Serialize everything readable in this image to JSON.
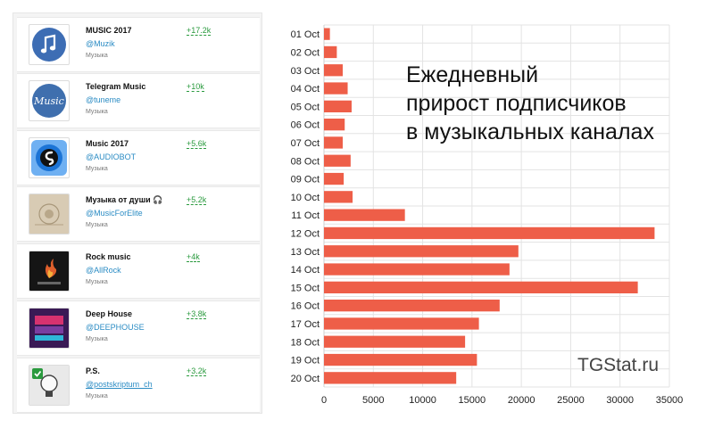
{
  "channels": [
    {
      "name": "MUSIC 2017",
      "handle": "@Muzik",
      "category": "Музыка",
      "growth": "+17.2k",
      "icon": "music-note-icon",
      "color": "#3d6db4"
    },
    {
      "name": "Telegram Music",
      "handle": "@tuneme",
      "category": "Музыка",
      "growth": "+10k",
      "icon": "music-text-logo-icon",
      "color": "#3f6fae",
      "logo_text": "Music"
    },
    {
      "name": "Music 2017",
      "handle": "@AUDIOBOT",
      "category": "Музыка",
      "growth": "+5.6k",
      "icon": "shazam-logo-icon",
      "color": "#1c74d6"
    },
    {
      "name": "Музыка от души 🎧",
      "handle": "@MusicForElite",
      "category": "Музыка",
      "growth": "+5.2k",
      "icon": "album-cover-icon",
      "color": "#c9b9a0"
    },
    {
      "name": "Rock music",
      "handle": "@AllRock",
      "category": "Музыка",
      "growth": "+4k",
      "icon": "guitar-fire-icon",
      "color": "#1a1a1a"
    },
    {
      "name": "Deep House",
      "handle": "@DEEPHOUSE",
      "category": "Музыка",
      "growth": "+3.8k",
      "icon": "deep-house-cover-icon",
      "color": "#5b2a78"
    },
    {
      "name": "P.S.",
      "handle": "@postskriptum_ch",
      "category": "Музыка",
      "growth": "+3.2k",
      "icon": "lightbulb-icon",
      "color": "#2a9a3e"
    }
  ],
  "title_lines": [
    "Ежедневный",
    "прирост подписчиков",
    "в музыкальных каналах"
  ],
  "watermark": "TGStat.ru",
  "colors": {
    "bar": "#ee5e48",
    "grid": "#e3e3e3",
    "growth": "#2a9a3e",
    "link": "#2b8cc4"
  },
  "chart_data": {
    "type": "bar",
    "orientation": "horizontal",
    "categories": [
      "01 Oct",
      "02 Oct",
      "03 Oct",
      "04 Oct",
      "05 Oct",
      "06 Oct",
      "07 Oct",
      "08 Oct",
      "09 Oct",
      "10 Oct",
      "11 Oct",
      "12 Oct",
      "13 Oct",
      "14 Oct",
      "15 Oct",
      "16 Oct",
      "17 Oct",
      "18 Oct",
      "19 Oct",
      "20 Oct"
    ],
    "values": [
      600,
      1300,
      1900,
      2400,
      2800,
      2100,
      1900,
      2700,
      2000,
      2900,
      8200,
      33500,
      19700,
      18800,
      31800,
      17800,
      15700,
      14300,
      15500,
      13400
    ],
    "xlim": [
      0,
      35000
    ],
    "xticks": [
      0,
      5000,
      10000,
      15000,
      20000,
      25000,
      30000,
      35000
    ],
    "title": "Ежедневный прирост подписчиков в музыкальных каналах",
    "xlabel": "",
    "ylabel": "",
    "grid": true,
    "legend": "none"
  }
}
